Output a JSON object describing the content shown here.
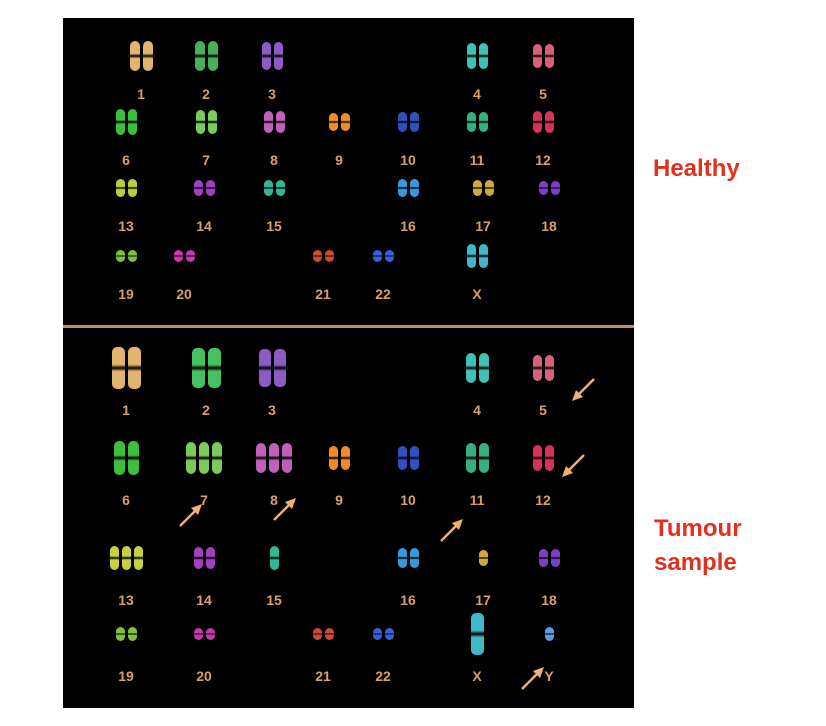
{
  "labels": {
    "healthy": "Healthy",
    "tumour": "Tumour sample"
  },
  "colors": {
    "background": "#000000",
    "divider": "#c98a60",
    "number_label": "#d8a06a",
    "side_label": "#e0301e",
    "arrow": "#f0b070"
  },
  "healthy_karyotype": [
    {
      "label": "1",
      "color": "#e2b56e"
    },
    {
      "label": "2",
      "color": "#46b15a"
    },
    {
      "label": "3",
      "color": "#8b5cc4"
    },
    {
      "label": "4",
      "color": "#3fc2b4"
    },
    {
      "label": "5",
      "color": "#d9607a"
    },
    {
      "label": "6",
      "color": "#3cbf3c"
    },
    {
      "label": "7",
      "color": "#7acb5a"
    },
    {
      "label": "8",
      "color": "#c060b8"
    },
    {
      "label": "9",
      "color": "#f08a2a"
    },
    {
      "label": "10",
      "color": "#3050c0"
    },
    {
      "label": "11",
      "color": "#34b080"
    },
    {
      "label": "12",
      "color": "#d8305a"
    },
    {
      "label": "13",
      "color": "#b8d040"
    },
    {
      "label": "14",
      "color": "#a040c0"
    },
    {
      "label": "15",
      "color": "#30b898"
    },
    {
      "label": "16",
      "color": "#3a98d8"
    },
    {
      "label": "17",
      "color": "#d0a840"
    },
    {
      "label": "18",
      "color": "#7840c8"
    },
    {
      "label": "19",
      "color": "#80c040"
    },
    {
      "label": "20",
      "color": "#c838b0"
    },
    {
      "label": "21",
      "color": "#d04838"
    },
    {
      "label": "22",
      "color": "#3a60e0"
    },
    {
      "label": "X",
      "color": "#40b8c8"
    }
  ],
  "tumour_karyotype": [
    {
      "label": "1",
      "color": "#e2b56e"
    },
    {
      "label": "2",
      "color": "#46c060"
    },
    {
      "label": "3",
      "color": "#8b5cc4"
    },
    {
      "label": "4",
      "color": "#3fc2b4"
    },
    {
      "label": "5",
      "color": "#d9607a"
    },
    {
      "label": "6",
      "color": "#3cbf3c"
    },
    {
      "label": "7",
      "color": "#7acb5a"
    },
    {
      "label": "8",
      "color": "#c060b8"
    },
    {
      "label": "9",
      "color": "#f08a2a"
    },
    {
      "label": "10",
      "color": "#3050c0"
    },
    {
      "label": "11",
      "color": "#34b080"
    },
    {
      "label": "12",
      "color": "#d8305a"
    },
    {
      "label": "13",
      "color": "#c8d040"
    },
    {
      "label": "14",
      "color": "#a040c0"
    },
    {
      "label": "15",
      "color": "#30b898"
    },
    {
      "label": "16",
      "color": "#3a98d8"
    },
    {
      "label": "17",
      "color": "#d0a840"
    },
    {
      "label": "18",
      "color": "#7840c8"
    },
    {
      "label": "19",
      "color": "#80c040"
    },
    {
      "label": "20",
      "color": "#c838b0"
    },
    {
      "label": "21",
      "color": "#d04838"
    },
    {
      "label": "22",
      "color": "#3a60e0"
    },
    {
      "label": "X",
      "color": "#40b8c8"
    },
    {
      "label": "Y",
      "color": "#5aa0e0"
    }
  ]
}
